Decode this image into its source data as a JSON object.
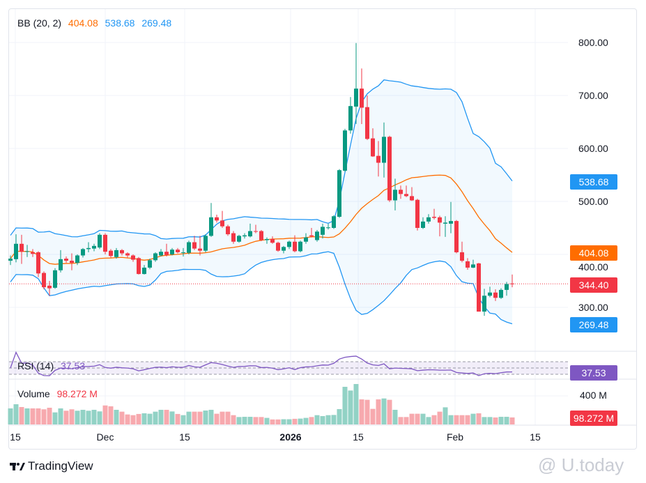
{
  "chart_data": {
    "type": "candlestick",
    "indicator_legend": {
      "label": "BB (20, 2)",
      "basis": "404.08",
      "upper": "538.68",
      "lower": "269.48"
    },
    "colors": {
      "up": "#089981",
      "down": "#F23645",
      "basis": "#FF6D00",
      "bands": "#2196F3",
      "rsi": "#7E57C2",
      "volume_up": "#92D2C5",
      "volume_down": "#F7A9AE"
    },
    "price_axis": {
      "ticks": [
        300,
        400,
        500,
        600,
        700,
        800
      ],
      "tick_labels": [
        "300.00",
        "400.00",
        "500.00",
        "600.00",
        "700.00",
        "800.00"
      ]
    },
    "time_axis": {
      "labels": [
        "15",
        "Dec",
        "15",
        "2026",
        "15",
        "Feb",
        "15"
      ]
    },
    "last_price": "344.40",
    "candles_ohlc": [
      [
        388,
        398,
        380,
        392
      ],
      [
        391,
        438,
        385,
        420
      ],
      [
        420,
        437,
        382,
        405
      ],
      [
        406,
        418,
        395,
        406
      ],
      [
        404,
        410,
        395,
        401
      ],
      [
        404,
        406,
        357,
        364
      ],
      [
        365,
        368,
        334,
        338
      ],
      [
        341,
        350,
        322,
        336
      ],
      [
        337,
        374,
        335,
        370
      ],
      [
        370,
        408,
        366,
        391
      ],
      [
        392,
        396,
        384,
        388
      ],
      [
        388,
        402,
        370,
        384
      ],
      [
        384,
        400,
        380,
        398
      ],
      [
        398,
        412,
        394,
        410
      ],
      [
        410,
        423,
        404,
        412
      ],
      [
        411,
        420,
        406,
        416
      ],
      [
        413,
        440,
        410,
        437
      ],
      [
        437,
        440,
        400,
        405
      ],
      [
        407,
        410,
        394,
        397
      ],
      [
        395,
        412,
        392,
        408
      ],
      [
        408,
        410,
        398,
        402
      ],
      [
        402,
        404,
        394,
        398
      ],
      [
        398,
        400,
        386,
        390
      ],
      [
        393,
        395,
        362,
        363
      ],
      [
        363,
        380,
        362,
        375
      ],
      [
        375,
        392,
        372,
        389
      ],
      [
        389,
        404,
        386,
        402
      ],
      [
        398,
        410,
        396,
        405
      ],
      [
        405,
        420,
        396,
        399
      ],
      [
        400,
        412,
        398,
        409
      ],
      [
        409,
        412,
        402,
        404
      ],
      [
        403,
        412,
        396,
        404
      ],
      [
        403,
        426,
        400,
        423
      ],
      [
        423,
        435,
        408,
        411
      ],
      [
        411,
        435,
        398,
        407
      ],
      [
        407,
        438,
        404,
        435
      ],
      [
        435,
        497,
        433,
        470
      ],
      [
        470,
        475,
        460,
        464
      ],
      [
        464,
        482,
        450,
        453
      ],
      [
        453,
        456,
        435,
        438
      ],
      [
        440,
        444,
        420,
        424
      ],
      [
        424,
        437,
        422,
        435
      ],
      [
        434,
        440,
        430,
        436
      ],
      [
        434,
        458,
        432,
        444
      ],
      [
        444,
        456,
        440,
        443
      ],
      [
        444,
        446,
        425,
        427
      ],
      [
        427,
        432,
        420,
        429
      ],
      [
        429,
        434,
        420,
        422
      ],
      [
        422,
        424,
        405,
        407
      ],
      [
        407,
        416,
        402,
        414
      ],
      [
        414,
        426,
        410,
        424
      ],
      [
        424,
        436,
        404,
        406
      ],
      [
        406,
        426,
        404,
        424
      ],
      [
        424,
        440,
        420,
        432
      ],
      [
        436,
        450,
        432,
        434
      ],
      [
        427,
        446,
        424,
        443
      ],
      [
        437,
        458,
        430,
        452
      ],
      [
        451,
        458,
        447,
        451
      ],
      [
        450,
        474,
        448,
        472
      ],
      [
        471,
        561,
        469,
        559
      ],
      [
        558,
        637,
        556,
        634
      ],
      [
        634,
        697,
        628,
        680
      ],
      [
        679,
        799,
        646,
        713
      ],
      [
        713,
        751,
        646,
        677
      ],
      [
        678,
        700,
        616,
        618
      ],
      [
        619,
        638,
        584,
        585
      ],
      [
        586,
        614,
        547,
        573
      ],
      [
        573,
        649,
        545,
        622
      ],
      [
        622,
        624,
        499,
        502
      ],
      [
        502,
        543,
        483,
        522
      ],
      [
        522,
        530,
        505,
        514
      ],
      [
        514,
        530,
        508,
        510
      ],
      [
        510,
        527,
        501,
        502
      ],
      [
        503,
        505,
        445,
        450
      ],
      [
        450,
        470,
        448,
        462
      ],
      [
        462,
        476,
        458,
        470
      ],
      [
        471,
        486,
        466,
        469
      ],
      [
        470,
        473,
        434,
        460
      ],
      [
        458,
        472,
        433,
        460
      ],
      [
        458,
        499,
        440,
        463
      ],
      [
        463,
        465,
        402,
        404
      ],
      [
        404,
        424,
        385,
        388
      ],
      [
        387,
        393,
        371,
        375
      ],
      [
        375,
        390,
        374,
        381
      ],
      [
        383,
        384,
        292,
        292
      ],
      [
        292,
        335,
        284,
        322
      ],
      [
        322,
        339,
        319,
        328
      ],
      [
        328,
        334,
        312,
        318
      ],
      [
        318,
        336,
        316,
        333
      ],
      [
        333,
        348,
        322,
        344
      ],
      [
        345,
        362,
        338,
        344.4
      ]
    ],
    "bb": {
      "period": 20,
      "mult": 2
    },
    "rsi": {
      "label": "RSI (14)",
      "value": "37.53",
      "levels": [
        70,
        50,
        30
      ]
    },
    "volume": {
      "label": "Volume",
      "value": "98.272 M",
      "axis_label": "400 M",
      "unit": "M",
      "values": [
        225,
        283,
        244,
        225,
        225,
        225,
        212,
        234,
        169,
        225,
        192,
        212,
        192,
        205,
        192,
        205,
        183,
        266,
        254,
        205,
        179,
        140,
        130,
        147,
        156,
        150,
        179,
        205,
        205,
        182,
        147,
        130,
        179,
        179,
        179,
        195,
        205,
        150,
        179,
        179,
        130,
        104,
        107,
        107,
        104,
        104,
        92,
        70,
        70,
        73,
        73,
        79,
        82,
        92,
        104,
        130,
        117,
        130,
        133,
        215,
        527,
        475,
        566,
        351,
        345,
        218,
        351,
        364,
        345,
        205,
        104,
        104,
        150,
        150,
        150,
        104,
        130,
        179,
        240,
        130,
        130,
        130,
        130,
        150,
        156,
        104,
        104,
        98,
        107,
        107,
        98.272
      ]
    }
  },
  "footer": {
    "brand": "TradingView",
    "watermark": "@ U.today"
  }
}
